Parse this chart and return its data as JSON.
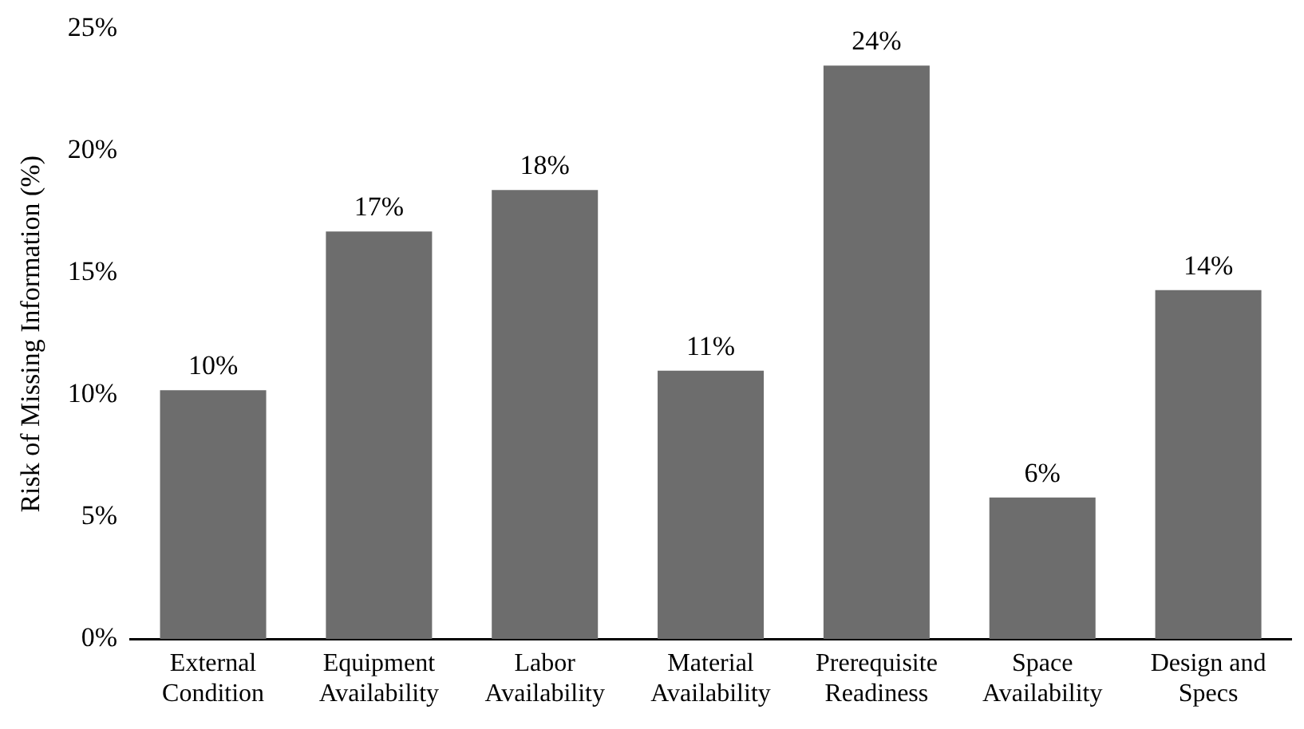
{
  "chart_data": {
    "type": "bar",
    "ylabel": "Risk of Missing Information (%)",
    "categories": [
      "External Condition",
      "Equipment Availability",
      "Labor Availability",
      "Material Availability",
      "Prerequisite Readiness",
      "Space Availability",
      "Design and Specs"
    ],
    "values": [
      10.2,
      16.7,
      18.4,
      11,
      23.5,
      5.8,
      14.3
    ],
    "value_labels": [
      "10%",
      "17%",
      "18%",
      "11%",
      "24%",
      "6%",
      "14%"
    ],
    "color": "#6d6d6d",
    "ylim": [
      0,
      25
    ],
    "yticks": [
      {
        "value": 0,
        "label": "0%"
      },
      {
        "value": 5,
        "label": "5%"
      },
      {
        "value": 10,
        "label": "10%"
      },
      {
        "value": 15,
        "label": "15%"
      },
      {
        "value": 20,
        "label": "20%"
      },
      {
        "value": 25,
        "label": "25%"
      }
    ],
    "grid": false,
    "legend": false
  }
}
